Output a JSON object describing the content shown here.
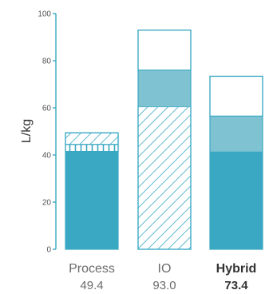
{
  "chart_data": {
    "type": "bar",
    "stacked": true,
    "ylabel": "L/kg",
    "ylim": [
      0,
      100
    ],
    "yticks": [
      0,
      20,
      40,
      60,
      80,
      100
    ],
    "categories": [
      "Process",
      "IO",
      "Hybrid"
    ],
    "totals_labels": [
      "49.4",
      "93.0",
      "73.4"
    ],
    "bold_categories": [
      "Hybrid"
    ],
    "totals": [
      49.4,
      93.0,
      73.4
    ],
    "bars": [
      {
        "category": "Process",
        "segments": [
          {
            "from": 0,
            "to": 41.5,
            "pattern": "solid"
          },
          {
            "from": 41.5,
            "to": 44.5,
            "pattern": "vertical"
          },
          {
            "from": 44.5,
            "to": 49.4,
            "pattern": "diagonal"
          }
        ]
      },
      {
        "category": "IO",
        "segments": [
          {
            "from": 0,
            "to": 60.5,
            "pattern": "diagonal"
          },
          {
            "from": 60.5,
            "to": 76.0,
            "pattern": "light"
          },
          {
            "from": 76.0,
            "to": 93.0,
            "pattern": "empty"
          }
        ]
      },
      {
        "category": "Hybrid",
        "segments": [
          {
            "from": 0,
            "to": 41.5,
            "pattern": "solid"
          },
          {
            "from": 41.5,
            "to": 56.5,
            "pattern": "light"
          },
          {
            "from": 56.5,
            "to": 73.4,
            "pattern": "empty"
          }
        ]
      }
    ],
    "colors": {
      "solid": "#3aa8c3",
      "light": "#7fc2d2",
      "stroke": "#3aa8c3",
      "axis": "#3aa8c3"
    }
  }
}
